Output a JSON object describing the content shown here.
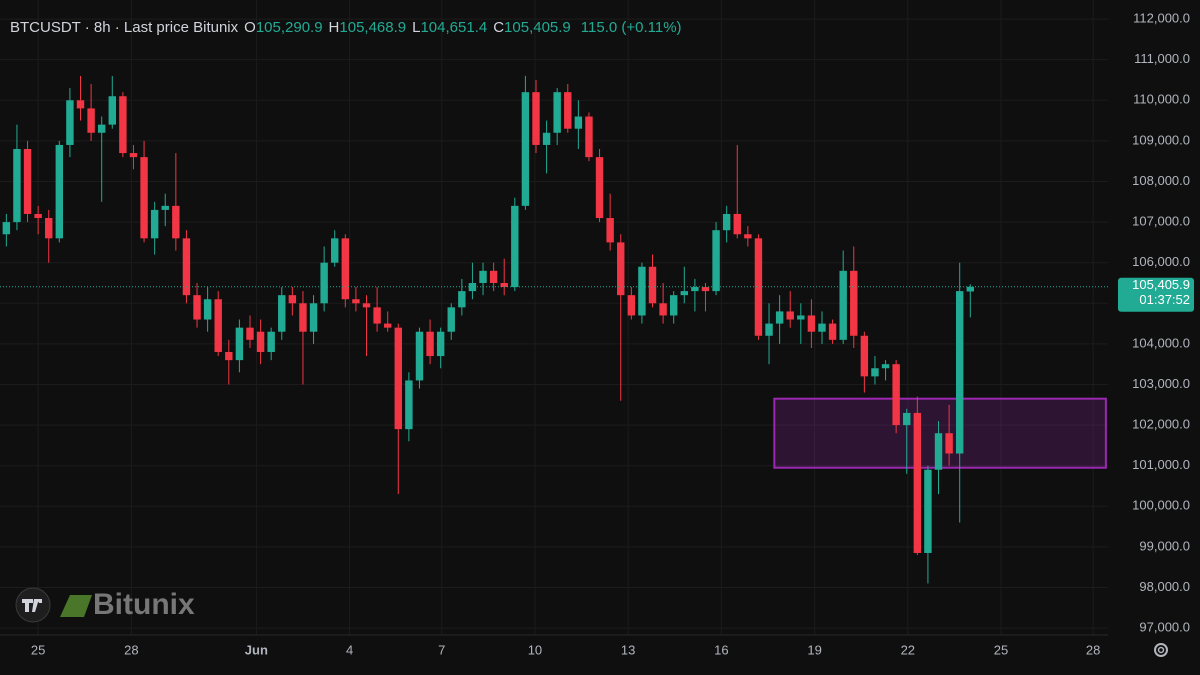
{
  "chart_data": {
    "type": "candlestick",
    "legend": {
      "symbol": "BTCUSDT · 8h · Last price Bitunix",
      "fields": [
        {
          "key": "O",
          "text": "105,290.9"
        },
        {
          "key": "H",
          "text": "105,468.9"
        },
        {
          "key": "L",
          "text": "104,651.4"
        },
        {
          "key": "C",
          "text": "105,405.9"
        }
      ],
      "change": "115.0 (+0.11%)"
    },
    "watermark": "Bitunix",
    "up_color": "#22ab94",
    "down_color": "#f23645",
    "open": [
      106700,
      107000,
      108800,
      107200,
      107100,
      106600,
      108900,
      110000,
      109800,
      109200,
      109400,
      110100,
      108700,
      108600,
      106600,
      107300,
      107400,
      106600,
      105200,
      104600,
      105100,
      103800,
      103600,
      104400,
      104300,
      103800,
      104300,
      105200,
      105000,
      104300,
      105000,
      106000,
      106600,
      105100,
      105000,
      104900,
      104500,
      104400,
      101900,
      103100,
      104300,
      103700,
      104300,
      104900,
      105300,
      105500,
      105800,
      105500,
      105400,
      107400,
      110200,
      108900,
      109200,
      110200,
      109300,
      109600,
      108600,
      107100,
      106500,
      105200,
      104700,
      105900,
      105000,
      104700,
      105200,
      105300,
      105400,
      105300,
      106800,
      107200,
      106700,
      106600,
      104200,
      104500,
      104800,
      104600,
      104700,
      104300,
      104500,
      104100,
      105800,
      104200,
      103200,
      103400,
      103500,
      102000,
      102300,
      98850,
      100900,
      101800,
      101300,
      105290.9
    ],
    "high": [
      107200,
      109400,
      109000,
      107400,
      107300,
      109000,
      110300,
      110600,
      110400,
      109600,
      110600,
      110200,
      108900,
      109000,
      107500,
      107700,
      108700,
      106800,
      105500,
      105400,
      105300,
      104100,
      104600,
      104700,
      104600,
      104400,
      105400,
      105400,
      105300,
      105200,
      106400,
      106800,
      106700,
      105400,
      105200,
      105400,
      104800,
      104500,
      103300,
      104400,
      104600,
      104400,
      105000,
      105600,
      106000,
      106000,
      106000,
      106100,
      107600,
      110600,
      110500,
      109500,
      110300,
      110400,
      110000,
      109700,
      108800,
      107700,
      106700,
      105400,
      106000,
      106200,
      105500,
      105300,
      105900,
      105600,
      105500,
      107000,
      107400,
      108900,
      106900,
      106700,
      105000,
      105200,
      105300,
      105000,
      105100,
      104800,
      104600,
      106300,
      106400,
      104300,
      103700,
      103600,
      103600,
      102400,
      102700,
      101000,
      102100,
      102500,
      106000,
      105468.9
    ],
    "low": [
      106400,
      106800,
      107000,
      106700,
      106000,
      106500,
      108600,
      109500,
      109000,
      107500,
      109300,
      108600,
      108300,
      106500,
      106200,
      106900,
      106300,
      105000,
      104400,
      104300,
      103700,
      103000,
      103300,
      103900,
      103500,
      103600,
      104100,
      104700,
      103000,
      104000,
      104800,
      105900,
      104900,
      104800,
      103700,
      104300,
      104300,
      100300,
      101600,
      102900,
      103500,
      103400,
      104100,
      104700,
      105100,
      105200,
      105300,
      105200,
      105300,
      107300,
      108700,
      108200,
      108900,
      109200,
      108800,
      108500,
      107000,
      106300,
      102600,
      104600,
      104500,
      104900,
      104500,
      104500,
      105000,
      104800,
      104800,
      105200,
      106500,
      106600,
      106400,
      104100,
      103500,
      104000,
      104400,
      104000,
      103900,
      104000,
      104000,
      104000,
      103900,
      102800,
      103000,
      103100,
      101800,
      100800,
      98800,
      98100,
      100300,
      101000,
      99600,
      104651.4
    ],
    "close": [
      107000,
      108800,
      107200,
      107100,
      106600,
      108900,
      110000,
      109800,
      109200,
      109400,
      110100,
      108700,
      108600,
      106600,
      107300,
      107400,
      106600,
      105200,
      104600,
      105100,
      103800,
      103600,
      104400,
      104100,
      103800,
      104300,
      105200,
      105000,
      104300,
      105000,
      106000,
      106600,
      105100,
      105000,
      104900,
      104500,
      104400,
      101900,
      103100,
      104300,
      103700,
      104300,
      104900,
      105300,
      105500,
      105800,
      105500,
      105400,
      107400,
      110200,
      108900,
      109200,
      110200,
      109300,
      109600,
      108600,
      107100,
      106500,
      105200,
      104700,
      105900,
      105000,
      104700,
      105200,
      105300,
      105400,
      105300,
      106800,
      107200,
      106700,
      106600,
      104200,
      104500,
      104800,
      104600,
      104700,
      104300,
      104500,
      104100,
      105800,
      104200,
      103200,
      103400,
      103500,
      102000,
      102300,
      98850,
      100900,
      101800,
      101300,
      105300,
      105405.9
    ],
    "last_price": {
      "value": 105405.9,
      "label": "105,405.9"
    },
    "countdown": "01:37:52",
    "zone": {
      "x": [
        72.5,
        103.8
      ],
      "y": [
        100950,
        102650
      ],
      "color": "#9c27b0"
    },
    "xlim": [
      -0.6,
      104
    ],
    "ylim": [
      96830,
      112470
    ],
    "xticks": [
      {
        "value": 3,
        "label": "25"
      },
      {
        "value": 11.8,
        "label": "28"
      },
      {
        "value": 23.6,
        "label": "Jun"
      },
      {
        "value": 32.4,
        "label": "4"
      },
      {
        "value": 41.1,
        "label": "7"
      },
      {
        "value": 49.9,
        "label": "10"
      },
      {
        "value": 58.7,
        "label": "13"
      },
      {
        "value": 67.5,
        "label": "16"
      },
      {
        "value": 76.3,
        "label": "19"
      },
      {
        "value": 85.1,
        "label": "22"
      },
      {
        "value": 93.9,
        "label": "25"
      },
      {
        "value": 102.6,
        "label": "28"
      }
    ],
    "yticks": [
      {
        "value": 97000,
        "label": "97,000.0"
      },
      {
        "value": 98000,
        "label": "98,000.0"
      },
      {
        "value": 99000,
        "label": "99,000.0"
      },
      {
        "value": 100000,
        "label": "100,000.0"
      },
      {
        "value": 101000,
        "label": "101,000.0"
      },
      {
        "value": 102000,
        "label": "102,000.0"
      },
      {
        "value": 103000,
        "label": "103,000.0"
      },
      {
        "value": 104000,
        "label": "104,000.0"
      },
      {
        "value": 105000,
        "label": "105,000.0"
      },
      {
        "value": 106000,
        "label": "106,000.0"
      },
      {
        "value": 107000,
        "label": "107,000.0"
      },
      {
        "value": 108000,
        "label": "108,000.0"
      },
      {
        "value": 109000,
        "label": "109,000.0"
      },
      {
        "value": 110000,
        "label": "110,000.0"
      },
      {
        "value": 111000,
        "label": "111,000.0"
      },
      {
        "value": 112000,
        "label": "112,000.0"
      }
    ],
    "grid": true
  }
}
